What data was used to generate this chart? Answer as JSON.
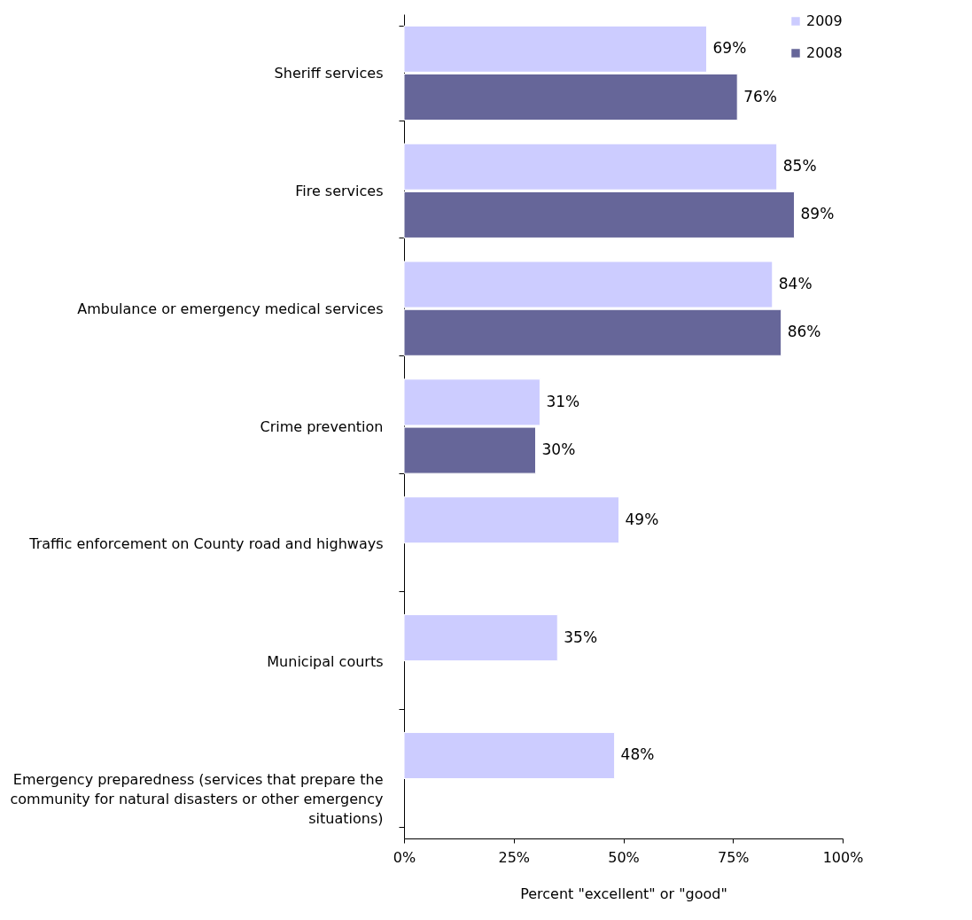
{
  "chart_data": {
    "type": "bar",
    "orientation": "horizontal",
    "xlabel": "Percent \"excellent\" or \"good\"",
    "categories": [
      "Sheriff services",
      "Fire services",
      "Ambulance or emergency medical services",
      "Crime prevention",
      "Traffic enforcement on County road and highways",
      "Municipal courts",
      "Emergency preparedness (services that prepare the community for natural disasters or other emergency situations)"
    ],
    "series": [
      {
        "name": "2009",
        "color": "#ccccff",
        "values": [
          69,
          85,
          84,
          31,
          49,
          35,
          48
        ],
        "value_labels": [
          "69%",
          "85%",
          "84%",
          "31%",
          "49%",
          "35%",
          "48%"
        ]
      },
      {
        "name": "2008",
        "color": "#666699",
        "values": [
          76,
          89,
          86,
          30,
          null,
          null,
          null
        ],
        "value_labels": [
          "76%",
          "89%",
          "86%",
          "30%",
          null,
          null,
          null
        ]
      }
    ],
    "xlim": [
      0,
      100
    ],
    "xticks": [
      {
        "value": 0,
        "label": "0%"
      },
      {
        "value": 25,
        "label": "25%"
      },
      {
        "value": 50,
        "label": "50%"
      },
      {
        "value": 75,
        "label": "75%"
      },
      {
        "value": 100,
        "label": "100%"
      }
    ],
    "grid": false,
    "legend": "top right"
  }
}
